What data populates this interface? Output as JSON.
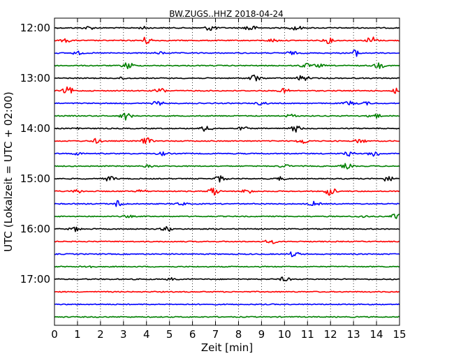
{
  "chart_data": {
    "type": "line",
    "title": "BW.ZUGS..HHZ 2018-04-24",
    "xlabel": "Zeit  [min]",
    "ylabel": "UTC (Lokalzeit = UTC + 02:00)",
    "xlim": [
      0,
      15
    ],
    "x_ticks": [
      "0",
      "1",
      "2",
      "3",
      "4",
      "5",
      "6",
      "7",
      "8",
      "9",
      "10",
      "11",
      "12",
      "13",
      "14",
      "15"
    ],
    "y_tick_labels": [
      "12:00",
      "13:00",
      "14:00",
      "15:00",
      "16:00",
      "17:00"
    ],
    "y_tick_trace_index": [
      0,
      4,
      8,
      12,
      16,
      20
    ],
    "grid": "vertical dotted",
    "trace_colors": [
      "#000000",
      "#ff0000",
      "#0000ff",
      "#008000"
    ],
    "series": [
      {
        "start": "12:00",
        "events": [
          [
            1.5,
            0.3
          ],
          [
            3.9,
            0.2
          ],
          [
            6.8,
            0.6
          ],
          [
            8.5,
            0.7
          ],
          [
            10.5,
            0.5
          ]
        ]
      },
      {
        "start": "12:15",
        "events": [
          [
            0.5,
            0.3
          ],
          [
            4.0,
            0.7
          ],
          [
            9.5,
            0.3
          ],
          [
            11.9,
            0.5
          ],
          [
            13.8,
            0.8
          ]
        ]
      },
      {
        "start": "12:30",
        "events": [
          [
            1.0,
            0.3
          ],
          [
            4.6,
            0.2
          ],
          [
            10.3,
            0.3
          ],
          [
            13.1,
            0.6
          ]
        ]
      },
      {
        "start": "12:45",
        "events": [
          [
            3.2,
            0.7
          ],
          [
            10.9,
            0.4
          ],
          [
            11.5,
            0.3
          ],
          [
            14.1,
            0.5
          ]
        ]
      },
      {
        "start": "13:00",
        "events": [
          [
            3.0,
            0.2
          ],
          [
            8.7,
            0.7
          ],
          [
            10.8,
            0.6
          ]
        ]
      },
      {
        "start": "13:15",
        "events": [
          [
            0.6,
            0.7
          ],
          [
            4.6,
            0.5
          ],
          [
            10.0,
            0.4
          ],
          [
            14.9,
            0.7
          ]
        ]
      },
      {
        "start": "13:30",
        "events": [
          [
            4.5,
            0.4
          ],
          [
            9.0,
            0.3
          ],
          [
            12.8,
            0.4
          ],
          [
            13.5,
            0.3
          ]
        ]
      },
      {
        "start": "13:45",
        "events": [
          [
            3.1,
            0.7
          ],
          [
            10.3,
            0.3
          ],
          [
            13.9,
            0.6
          ]
        ]
      },
      {
        "start": "14:00",
        "events": [
          [
            1.0,
            0.2
          ],
          [
            6.6,
            0.6
          ],
          [
            8.2,
            0.3
          ],
          [
            10.5,
            0.6
          ]
        ]
      },
      {
        "start": "14:15",
        "events": [
          [
            1.8,
            0.4
          ],
          [
            4.0,
            0.6
          ],
          [
            10.8,
            0.5
          ],
          [
            13.3,
            0.4
          ]
        ]
      },
      {
        "start": "14:30",
        "events": [
          [
            1.0,
            0.2
          ],
          [
            4.7,
            0.3
          ],
          [
            12.8,
            0.4
          ],
          [
            13.9,
            0.6
          ]
        ]
      },
      {
        "start": "14:45",
        "events": [
          [
            4.1,
            0.2
          ],
          [
            10.0,
            0.3
          ],
          [
            12.7,
            0.5
          ]
        ]
      },
      {
        "start": "15:00",
        "events": [
          [
            2.4,
            0.5
          ],
          [
            7.2,
            0.6
          ],
          [
            9.8,
            0.3
          ],
          [
            14.5,
            0.6
          ]
        ]
      },
      {
        "start": "15:15",
        "events": [
          [
            1.0,
            0.3
          ],
          [
            3.8,
            0.3
          ],
          [
            6.9,
            0.8
          ],
          [
            8.4,
            0.5
          ],
          [
            12.0,
            0.8
          ]
        ]
      },
      {
        "start": "15:30",
        "events": [
          [
            2.8,
            0.7
          ],
          [
            5.5,
            0.3
          ],
          [
            11.3,
            0.4
          ]
        ]
      },
      {
        "start": "15:45",
        "events": [
          [
            3.2,
            0.2
          ],
          [
            13.4,
            0.2
          ],
          [
            14.9,
            0.6
          ]
        ]
      },
      {
        "start": "16:00",
        "events": [
          [
            0.9,
            0.4
          ],
          [
            4.9,
            0.5
          ]
        ]
      },
      {
        "start": "16:15",
        "events": [
          [
            9.4,
            0.4
          ]
        ]
      },
      {
        "start": "16:30",
        "events": [
          [
            10.4,
            0.5
          ]
        ]
      },
      {
        "start": "16:45",
        "events": [
          [
            1.4,
            0.3
          ]
        ]
      },
      {
        "start": "17:00",
        "events": [
          [
            5.1,
            0.2
          ],
          [
            10.0,
            0.4
          ]
        ]
      },
      {
        "start": "17:15",
        "events": []
      },
      {
        "start": "17:30",
        "events": []
      },
      {
        "start": "17:45",
        "events": []
      }
    ]
  }
}
